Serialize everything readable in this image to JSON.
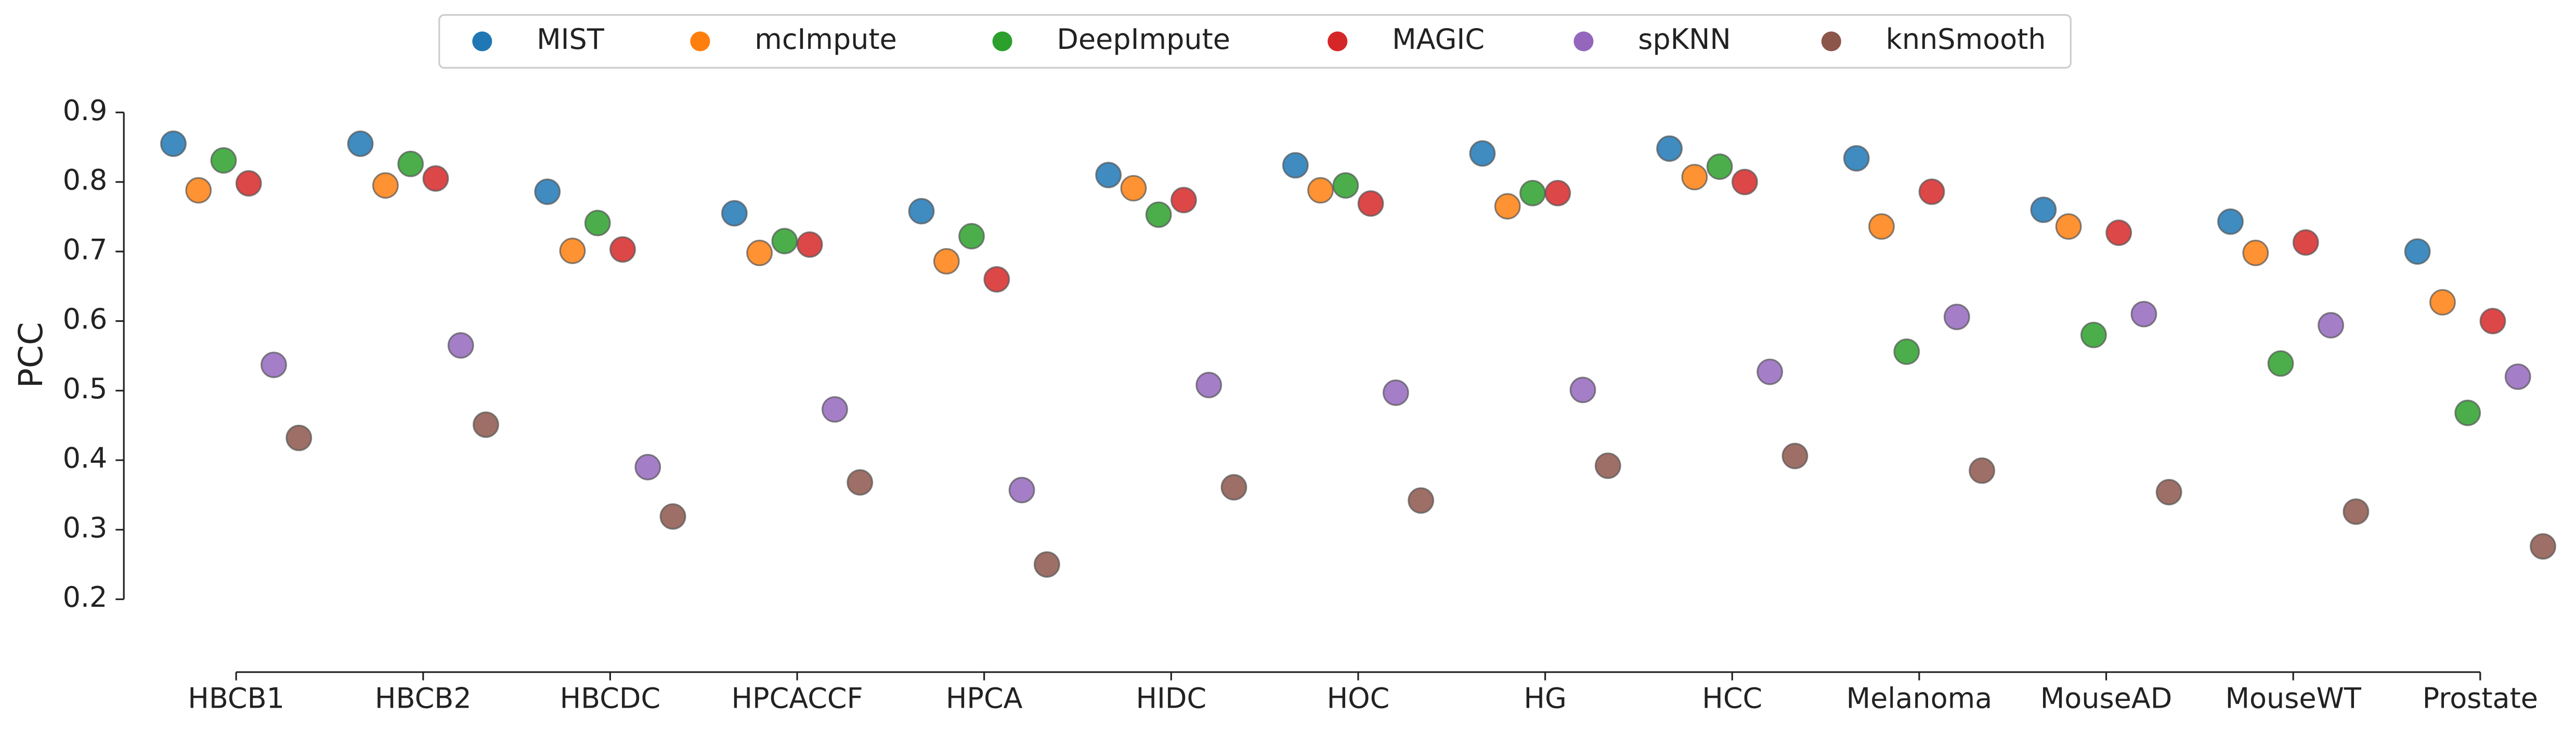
{
  "chart_data": {
    "type": "strip",
    "y_label": "PCC",
    "categories": [
      "HBCB1",
      "HBCB2",
      "HBCDC",
      "HPCACCF",
      "HPCA",
      "HIDC",
      "HOC",
      "HG",
      "HCC",
      "Melanoma",
      "MouseAD",
      "MouseWT",
      "Prostate"
    ],
    "series": [
      {
        "name": "MIST",
        "color": "#1f77b4",
        "values": [
          0.855,
          0.855,
          0.786,
          0.755,
          0.758,
          0.81,
          0.824,
          0.841,
          0.848,
          0.834,
          0.76,
          0.743,
          0.7
        ]
      },
      {
        "name": "mcImpute",
        "color": "#ff7f0e",
        "values": [
          0.788,
          0.795,
          0.701,
          0.698,
          0.686,
          0.791,
          0.788,
          0.765,
          0.807,
          0.736,
          0.736,
          0.698,
          0.627
        ]
      },
      {
        "name": "DeepImpute",
        "color": "#2ca02c",
        "values": [
          0.831,
          0.826,
          0.741,
          0.715,
          0.722,
          0.753,
          0.795,
          0.784,
          0.822,
          0.556,
          0.58,
          0.539,
          0.468
        ]
      },
      {
        "name": "MAGIC",
        "color": "#d62728",
        "values": [
          0.798,
          0.805,
          0.703,
          0.71,
          0.66,
          0.774,
          0.769,
          0.784,
          0.8,
          0.786,
          0.727,
          0.713,
          0.6
        ]
      },
      {
        "name": "spKNN",
        "color": "#9467bd",
        "values": [
          0.537,
          0.565,
          0.39,
          0.473,
          0.357,
          0.508,
          0.497,
          0.501,
          0.527,
          0.606,
          0.61,
          0.594,
          0.52
        ]
      },
      {
        "name": "knnSmooth",
        "color": "#8c564b",
        "values": [
          0.432,
          0.451,
          0.319,
          0.368,
          0.25,
          0.361,
          0.342,
          0.392,
          0.406,
          0.385,
          0.354,
          0.326,
          0.276
        ]
      }
    ],
    "ylim": [
      0.1,
      0.93
    ],
    "yticks": [
      0.2,
      0.3,
      0.4,
      0.5,
      0.6,
      0.7,
      0.8,
      0.9
    ],
    "legend": "top"
  }
}
